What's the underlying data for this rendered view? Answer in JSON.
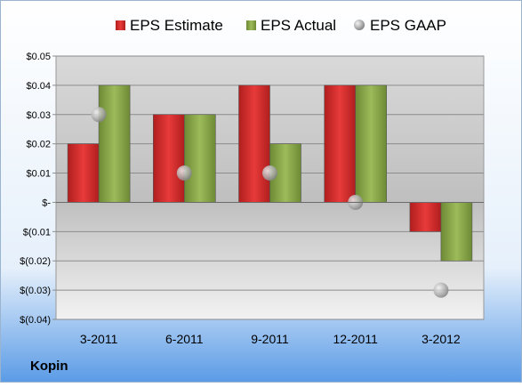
{
  "company": "Kopin",
  "colors": {
    "estimate": "#d42a2a",
    "actual": "#8aa84a",
    "gaap": "#b8b8b8"
  },
  "chart_data": {
    "type": "bar",
    "title": "",
    "xlabel": "",
    "ylabel": "",
    "categories": [
      "3-2011",
      "6-2011",
      "9-2011",
      "12-2011",
      "3-2012"
    ],
    "series": [
      {
        "name": "EPS Estimate",
        "kind": "bar",
        "values": [
          0.02,
          0.03,
          0.04,
          0.04,
          -0.01
        ]
      },
      {
        "name": "EPS Actual",
        "kind": "bar",
        "values": [
          0.04,
          0.03,
          0.02,
          0.04,
          -0.02
        ]
      },
      {
        "name": "EPS GAAP",
        "kind": "scatter",
        "values": [
          0.03,
          0.01,
          0.01,
          0.0,
          -0.03
        ]
      }
    ],
    "ylim": [
      -0.04,
      0.05
    ],
    "yticks": [
      0.05,
      0.04,
      0.03,
      0.02,
      0.01,
      0,
      -0.01,
      -0.02,
      -0.03,
      -0.04
    ],
    "ytick_labels": [
      "$0.05",
      "$0.04",
      "$0.03",
      "$0.02",
      "$0.01",
      "$-",
      "$(0.01",
      "$(0.02)",
      "$(0.03)",
      "$(0.04)"
    ],
    "grid": true,
    "legend": "top"
  }
}
